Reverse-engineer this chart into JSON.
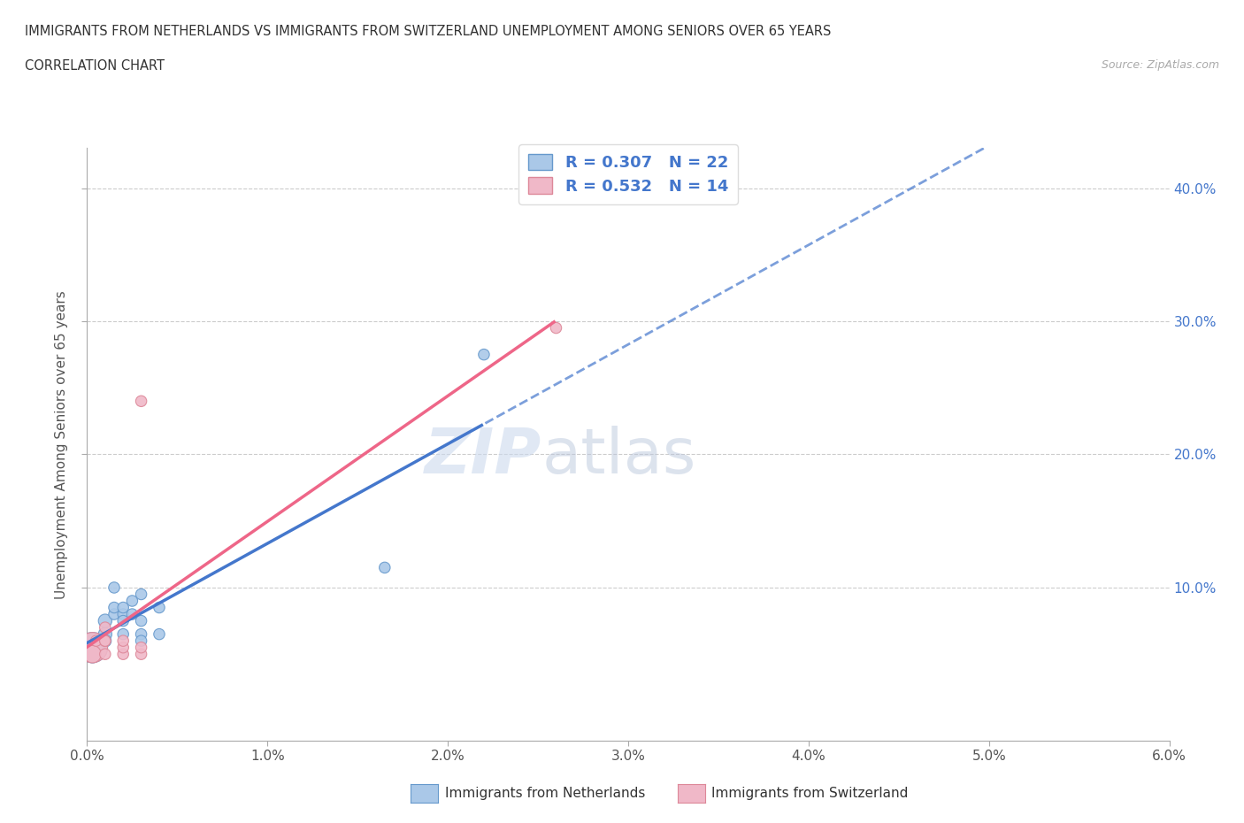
{
  "title_line1": "IMMIGRANTS FROM NETHERLANDS VS IMMIGRANTS FROM SWITZERLAND UNEMPLOYMENT AMONG SENIORS OVER 65 YEARS",
  "title_line2": "CORRELATION CHART",
  "source_text": "Source: ZipAtlas.com",
  "ylabel": "Unemployment Among Seniors over 65 years",
  "xlim": [
    0.0,
    0.06
  ],
  "ylim": [
    0.0,
    0.43
  ],
  "xticks": [
    0.0,
    0.01,
    0.02,
    0.03,
    0.04,
    0.05,
    0.06
  ],
  "yticks": [
    0.1,
    0.2,
    0.3,
    0.4
  ],
  "xtick_labels": [
    "0.0%",
    "1.0%",
    "2.0%",
    "3.0%",
    "4.0%",
    "5.0%",
    "6.0%"
  ],
  "right_ytick_labels": [
    "10.0%",
    "20.0%",
    "30.0%",
    "40.0%"
  ],
  "right_ytick_vals": [
    0.1,
    0.2,
    0.3,
    0.4
  ],
  "netherlands_x": [
    0.0003,
    0.0003,
    0.001,
    0.001,
    0.001,
    0.0015,
    0.0015,
    0.0015,
    0.002,
    0.002,
    0.002,
    0.002,
    0.0025,
    0.0025,
    0.003,
    0.003,
    0.003,
    0.003,
    0.004,
    0.004,
    0.0165,
    0.022
  ],
  "netherlands_y": [
    0.055,
    0.05,
    0.065,
    0.075,
    0.06,
    0.08,
    0.1,
    0.085,
    0.08,
    0.085,
    0.075,
    0.065,
    0.09,
    0.08,
    0.095,
    0.075,
    0.065,
    0.06,
    0.085,
    0.065,
    0.115,
    0.275
  ],
  "netherlands_sizes": [
    600,
    200,
    120,
    120,
    100,
    80,
    80,
    80,
    80,
    80,
    80,
    80,
    80,
    80,
    80,
    80,
    80,
    80,
    80,
    80,
    80,
    80
  ],
  "switzerland_x": [
    0.0003,
    0.0003,
    0.0005,
    0.001,
    0.001,
    0.001,
    0.001,
    0.002,
    0.002,
    0.002,
    0.003,
    0.003,
    0.003,
    0.026
  ],
  "switzerland_y": [
    0.055,
    0.05,
    0.06,
    0.06,
    0.07,
    0.06,
    0.05,
    0.05,
    0.055,
    0.06,
    0.05,
    0.055,
    0.24,
    0.295
  ],
  "switzerland_sizes": [
    600,
    200,
    80,
    80,
    80,
    80,
    80,
    80,
    80,
    80,
    80,
    80,
    80,
    80
  ],
  "netherlands_color": "#aac8e8",
  "netherlands_edge": "#6699cc",
  "switzerland_color": "#f0b8c8",
  "switzerland_edge": "#dd8899",
  "netherlands_line_color": "#4477cc",
  "switzerland_line_color": "#ee6688",
  "netherlands_r": 0.307,
  "netherlands_n": 22,
  "switzerland_r": 0.532,
  "switzerland_n": 14,
  "watermark_zip": "ZIP",
  "watermark_atlas": "atlas",
  "legend_label_netherlands": "Immigrants from Netherlands",
  "legend_label_switzerland": "Immigrants from Switzerland"
}
